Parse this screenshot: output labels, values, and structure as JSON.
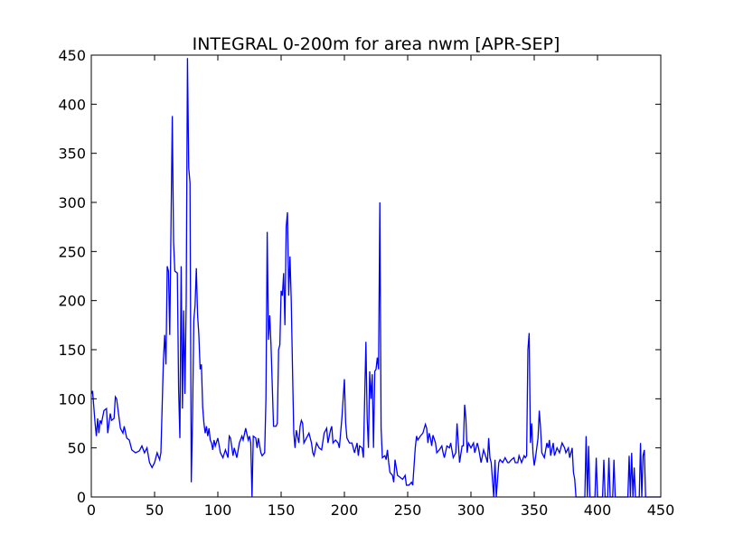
{
  "chart_data": {
    "type": "line",
    "title": "INTEGRAL 0-200m for area nwm [APR-SEP]",
    "color": "#0000ff",
    "x": [
      0,
      1,
      3,
      4,
      5,
      6,
      7,
      8,
      10,
      12,
      13,
      15,
      16,
      18,
      19,
      20,
      22,
      23,
      25,
      26,
      28,
      30,
      32,
      35,
      38,
      40,
      42,
      44,
      46,
      48,
      50,
      52,
      54,
      55,
      57,
      58,
      59,
      60,
      61,
      62,
      64,
      65,
      66,
      68,
      69,
      70,
      71,
      72,
      73,
      74,
      75,
      76,
      77,
      78,
      79,
      80,
      81,
      82,
      83,
      84,
      85,
      86,
      87,
      88,
      89,
      90,
      91,
      92,
      93,
      94,
      95,
      96,
      97,
      98,
      100,
      102,
      104,
      106,
      108,
      109,
      110,
      112,
      113,
      115,
      117,
      119,
      120,
      122,
      124,
      125,
      126,
      127,
      128,
      130,
      131,
      132,
      134,
      135,
      137,
      138,
      139,
      140,
      141,
      142,
      144,
      146,
      147,
      148,
      149,
      150,
      151,
      152,
      153,
      154,
      155,
      156,
      157,
      158,
      159,
      160,
      161,
      162,
      164,
      165,
      166,
      167,
      168,
      170,
      172,
      174,
      175,
      176,
      178,
      180,
      182,
      184,
      186,
      187,
      189,
      190,
      191,
      193,
      195,
      196,
      198,
      199,
      200,
      201,
      202,
      204,
      206,
      208,
      210,
      211,
      212,
      214,
      215,
      217,
      218,
      219,
      220,
      221,
      222,
      223,
      224,
      225,
      226,
      227,
      228,
      229,
      230,
      232,
      233,
      234,
      235,
      236,
      238,
      239,
      240,
      242,
      244,
      246,
      248,
      249,
      251,
      253,
      254,
      256,
      257,
      258,
      260,
      262,
      264,
      265,
      266,
      267,
      268,
      269,
      270,
      272,
      273,
      275,
      277,
      278,
      279,
      281,
      283,
      284,
      286,
      288,
      289,
      290,
      291,
      293,
      294,
      295,
      296,
      297,
      298,
      300,
      302,
      303,
      305,
      306,
      308,
      310,
      312,
      313,
      314,
      315,
      316,
      318,
      319,
      320,
      322,
      323,
      325,
      327,
      329,
      330,
      332,
      334,
      335,
      337,
      338,
      340,
      342,
      343,
      344,
      345,
      346,
      347,
      348,
      349,
      350,
      351,
      353,
      354,
      355,
      356,
      358,
      360,
      361,
      362,
      363,
      365,
      366,
      368,
      370,
      372,
      374,
      375,
      377,
      378,
      380,
      381,
      382,
      383,
      390,
      391,
      392,
      393,
      394,
      398,
      399,
      400,
      404,
      405,
      406,
      408,
      409,
      410,
      412,
      413,
      414,
      424,
      425,
      426,
      427,
      428,
      429,
      430,
      433,
      434,
      435,
      436,
      437,
      438,
      450
    ],
    "values": [
      105,
      108,
      75,
      62,
      80,
      65,
      78,
      75,
      88,
      90,
      65,
      85,
      78,
      80,
      102,
      100,
      80,
      70,
      65,
      72,
      60,
      58,
      48,
      45,
      47,
      52,
      45,
      50,
      35,
      30,
      35,
      45,
      38,
      45,
      140,
      165,
      135,
      235,
      230,
      165,
      388,
      260,
      230,
      228,
      110,
      60,
      235,
      90,
      190,
      105,
      200,
      447,
      335,
      320,
      15,
      80,
      180,
      195,
      233,
      185,
      165,
      130,
      135,
      92,
      75,
      65,
      72,
      62,
      70,
      58,
      55,
      48,
      58,
      52,
      60,
      45,
      40,
      48,
      40,
      62,
      60,
      42,
      50,
      40,
      55,
      62,
      58,
      70,
      58,
      62,
      55,
      0,
      62,
      60,
      50,
      60,
      45,
      42,
      45,
      100,
      270,
      160,
      185,
      155,
      72,
      72,
      75,
      150,
      155,
      210,
      205,
      228,
      175,
      275,
      290,
      205,
      245,
      200,
      130,
      65,
      50,
      68,
      55,
      72,
      78,
      75,
      55,
      60,
      65,
      55,
      45,
      42,
      55,
      50,
      48,
      65,
      70,
      55,
      68,
      72,
      55,
      58,
      55,
      50,
      80,
      100,
      120,
      75,
      60,
      55,
      55,
      45,
      55,
      42,
      52,
      50,
      40,
      158,
      80,
      50,
      128,
      100,
      125,
      50,
      128,
      130,
      142,
      130,
      300,
      70,
      40,
      42,
      38,
      48,
      35,
      25,
      22,
      15,
      38,
      22,
      20,
      18,
      22,
      12,
      12,
      15,
      12,
      50,
      62,
      58,
      62,
      65,
      74,
      70,
      55,
      65,
      60,
      52,
      63,
      55,
      45,
      48,
      52,
      45,
      40,
      52,
      50,
      55,
      40,
      45,
      75,
      55,
      35,
      52,
      52,
      94,
      80,
      45,
      55,
      50,
      55,
      45,
      55,
      50,
      35,
      48,
      40,
      35,
      60,
      40,
      35,
      0,
      38,
      0,
      35,
      38,
      35,
      40,
      35,
      35,
      38,
      40,
      35,
      35,
      42,
      35,
      42,
      40,
      42,
      150,
      167,
      55,
      75,
      45,
      32,
      40,
      60,
      88,
      70,
      45,
      40,
      55,
      50,
      58,
      42,
      55,
      42,
      50,
      45,
      55,
      50,
      45,
      50,
      40,
      50,
      25,
      18,
      0,
      0,
      62,
      0,
      52,
      0,
      0,
      40,
      0,
      0,
      38,
      0,
      0,
      40,
      0,
      0,
      38,
      0,
      0,
      42,
      0,
      45,
      0,
      30,
      0,
      0,
      55,
      0,
      42,
      48,
      0,
      0
    ],
    "xlim": [
      0,
      450
    ],
    "ylim": [
      0,
      450
    ],
    "xticks": [
      0,
      50,
      100,
      150,
      200,
      250,
      300,
      350,
      400,
      450
    ],
    "yticks": [
      0,
      50,
      100,
      150,
      200,
      250,
      300,
      350,
      400,
      450
    ]
  }
}
